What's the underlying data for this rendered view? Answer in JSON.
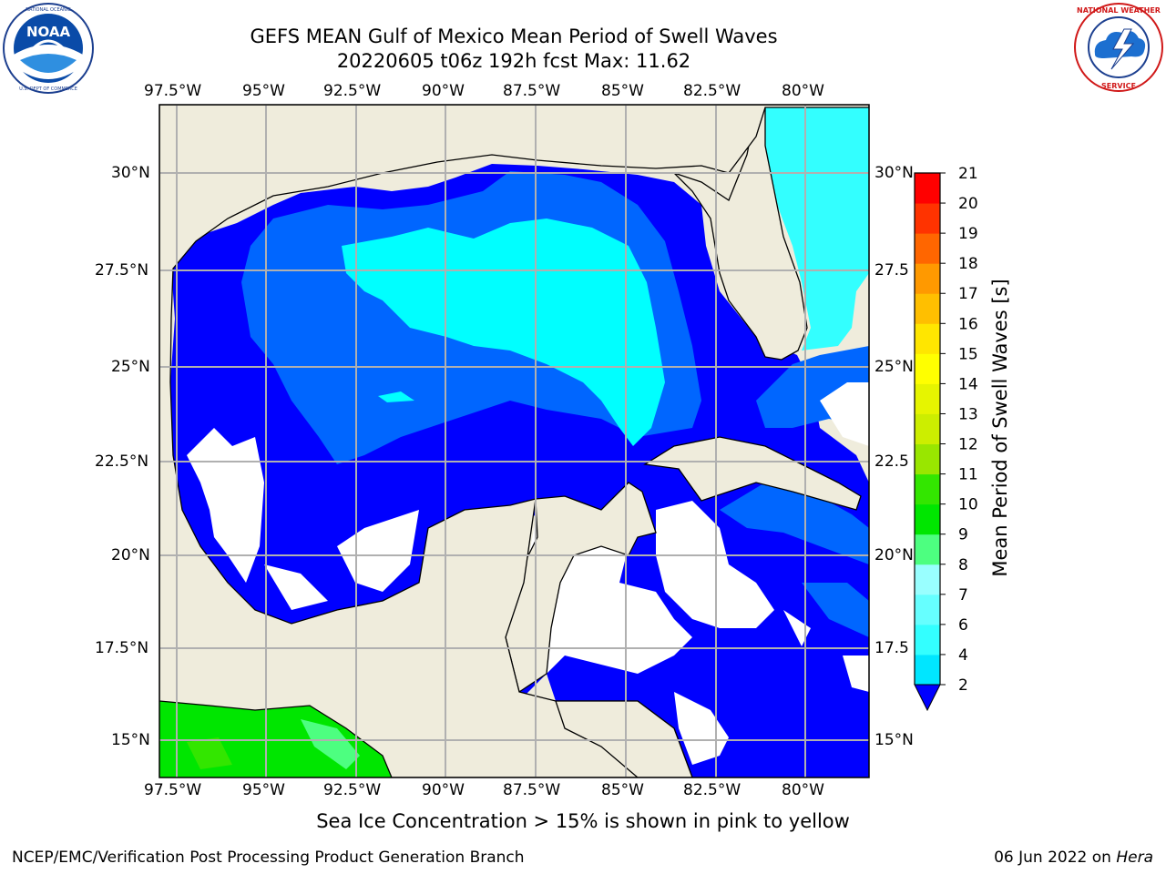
{
  "title": {
    "line1": "GEFS MEAN Gulf of Mexico Mean Period of Swell Waves",
    "line2": "20220605 t06z 192h fcst   Max: 11.62"
  },
  "logos": {
    "left": {
      "icon": "noaa-logo-icon",
      "ring_text": "NATIONAL OCEANIC AND ATMOSPHERIC ADMINISTRATION · U.S. DEPARTMENT OF COMMERCE",
      "center_text": "NOAA"
    },
    "right": {
      "icon": "nws-logo-icon",
      "ring_text": "NATIONAL WEATHER SERVICE"
    }
  },
  "map": {
    "lon_labels": [
      "97.5°W",
      "95°W",
      "92.5°W",
      "90°W",
      "87.5°W",
      "85°W",
      "82.5°W",
      "80°W"
    ],
    "lat_labels_left": [
      "30°N",
      "27.5°N",
      "25°N",
      "22.5°N",
      "20°N",
      "17.5°N",
      "15°N"
    ],
    "lat_labels_right": [
      "30°N",
      "27.5",
      "25°N",
      "22.5",
      "20°N",
      "17.5",
      "15°N"
    ],
    "lon_range": [
      -98,
      -78
    ],
    "lat_range": [
      14,
      32
    ],
    "colors": {
      "land": "#efecdc",
      "coast": "#000000",
      "grid": "#b0b0b0",
      "undefined": "#ffffff"
    }
  },
  "colorbar": {
    "label": "Mean Period of Swell Waves [s]",
    "ticks": [
      "2",
      "4",
      "6",
      "7",
      "8",
      "9",
      "10",
      "11",
      "12",
      "13",
      "14",
      "15",
      "16",
      "17",
      "18",
      "19",
      "20",
      "21"
    ],
    "colors": [
      "#0066ff",
      "#00e6ff",
      "#33ffff",
      "#66ffff",
      "#99ffff",
      "#4dff80",
      "#00e600",
      "#33e600",
      "#99e600",
      "#ccee00",
      "#e6f500",
      "#ffff00",
      "#ffe600",
      "#ffbf00",
      "#ff9900",
      "#ff6600",
      "#ff3300",
      "#ff0000"
    ],
    "extend_color": "#0000ff"
  },
  "caption": "Sea Ice Concentration > 15% is shown in pink to yellow",
  "footer": {
    "left": "NCEP/EMC/Verification Post Processing Product Generation Branch",
    "date": "06 Jun 2022",
    "on": "on",
    "machine": "Hera"
  }
}
